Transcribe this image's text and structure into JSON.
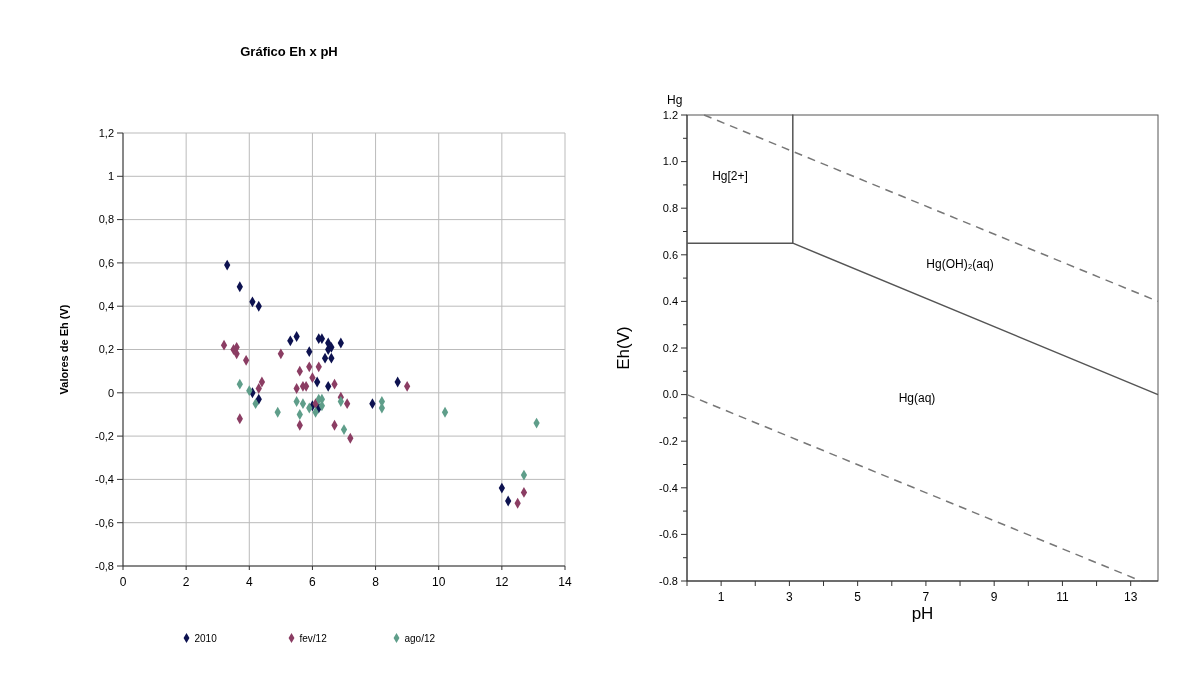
{
  "chart_data": [
    {
      "type": "scatter",
      "title": "Gráfico Eh x pH",
      "ylabel": "Valores de Eh (V)",
      "xlim": [
        0,
        14
      ],
      "xticks": [
        0,
        2,
        4,
        6,
        8,
        10,
        12,
        14
      ],
      "ylim": [
        -0.8,
        1.2
      ],
      "yticks": [
        {
          "value": -0.8,
          "label": "-0,8"
        },
        {
          "value": -0.6,
          "label": "-0,6"
        },
        {
          "value": -0.4,
          "label": "-0,4"
        },
        {
          "value": -0.2,
          "label": "-0,2"
        },
        0,
        {
          "value": 0.2,
          "label": "0,2"
        },
        {
          "value": 0.4,
          "label": "0,4"
        },
        {
          "value": 0.6,
          "label": "0,6"
        },
        {
          "value": 0.8,
          "label": "0,8"
        },
        1,
        {
          "value": 1.2,
          "label": "1,2"
        }
      ],
      "grid": true,
      "legend": "bottom",
      "marker": "diamond",
      "series": [
        {
          "name": "2010",
          "color": "#0d1250",
          "x": [
            3.3,
            3.7,
            4.1,
            4.3,
            5.3,
            5.5,
            5.9,
            6.2,
            6.3,
            6.5,
            6.5,
            6.6,
            6.4,
            6.6,
            6.9,
            6.15,
            6.5,
            4.1,
            4.3,
            6.2,
            6.0,
            7.9,
            8.7,
            12.0,
            12.2
          ],
          "values": [
            0.59,
            0.49,
            0.42,
            0.4,
            0.24,
            0.26,
            0.19,
            0.25,
            0.25,
            0.23,
            0.2,
            0.21,
            0.16,
            0.16,
            0.23,
            0.05,
            0.03,
            0.0,
            -0.03,
            -0.07,
            -0.06,
            -0.05,
            0.05,
            -0.44,
            -0.5
          ]
        },
        {
          "name": "fev/12",
          "color": "#8b3d63",
          "x": [
            3.2,
            3.5,
            3.6,
            3.6,
            3.9,
            5.0,
            3.7,
            4.4,
            4.3,
            5.6,
            5.9,
            6.2,
            5.7,
            5.5,
            5.8,
            6.0,
            6.7,
            6.1,
            5.6,
            6.7,
            6.9,
            7.1,
            7.2,
            9.0,
            12.5,
            12.7
          ],
          "values": [
            0.22,
            0.2,
            0.18,
            0.21,
            0.15,
            0.18,
            -0.12,
            0.05,
            0.02,
            0.1,
            0.12,
            0.12,
            0.03,
            0.02,
            0.03,
            0.07,
            0.04,
            -0.05,
            -0.15,
            -0.15,
            -0.02,
            -0.05,
            -0.21,
            0.03,
            -0.51,
            -0.46
          ]
        },
        {
          "name": "ago/12",
          "color": "#5f9e8a",
          "x": [
            3.7,
            4.0,
            4.2,
            4.9,
            5.5,
            5.6,
            5.7,
            5.9,
            6.2,
            6.3,
            6.3,
            6.1,
            6.9,
            7.0,
            8.2,
            8.2,
            10.2,
            13.1,
            12.7
          ],
          "values": [
            0.04,
            0.01,
            -0.05,
            -0.09,
            -0.04,
            -0.1,
            -0.05,
            -0.07,
            -0.03,
            -0.03,
            -0.06,
            -0.09,
            -0.04,
            -0.17,
            -0.04,
            -0.07,
            -0.09,
            -0.14,
            -0.38
          ]
        }
      ]
    },
    {
      "type": "line",
      "title": "Hg",
      "xlabel": "pH",
      "ylabel": "Eh(V)",
      "xlim": [
        0,
        13.8
      ],
      "xticks": [
        {
          "value": 0,
          "label": null
        },
        1,
        {
          "value": 2,
          "label": null
        },
        3,
        {
          "value": 4,
          "label": null
        },
        5,
        {
          "value": 6,
          "label": null
        },
        7,
        {
          "value": 8,
          "label": null
        },
        9,
        {
          "value": 10,
          "label": null
        },
        11,
        {
          "value": 12,
          "label": null
        },
        13
      ],
      "ylim": [
        -0.8,
        1.2
      ],
      "yticks": [
        {
          "value": -0.8,
          "label": "-0.8"
        },
        {
          "value": -0.7,
          "label": null
        },
        {
          "value": -0.6,
          "label": "-0.6"
        },
        {
          "value": -0.5,
          "label": null
        },
        {
          "value": -0.4,
          "label": "-0.4"
        },
        {
          "value": -0.3,
          "label": null
        },
        {
          "value": -0.2,
          "label": "-0.2"
        },
        {
          "value": -0.1,
          "label": null
        },
        {
          "value": 0,
          "label": "0.0"
        },
        {
          "value": 0.1,
          "label": null
        },
        {
          "value": 0.2,
          "label": "0.2"
        },
        {
          "value": 0.3,
          "label": null
        },
        {
          "value": 0.4,
          "label": "0.4"
        },
        {
          "value": 0.5,
          "label": null
        },
        {
          "value": 0.6,
          "label": "0.6"
        },
        {
          "value": 0.7,
          "label": null
        },
        {
          "value": 0.8,
          "label": "0.8"
        },
        {
          "value": 0.9,
          "label": null
        },
        {
          "value": 1.0,
          "label": "1.0"
        },
        {
          "value": 1.1,
          "label": null
        },
        {
          "value": 1.2,
          "label": "1.2"
        }
      ],
      "grid": false,
      "legend": false,
      "marker": "none",
      "series": [
        {
          "color": "#555555",
          "line_style": "solid",
          "x": [
            0,
            3.1,
            3.1,
            3.1,
            13.8
          ],
          "values": [
            0.65,
            0.65,
            1.2,
            0.65,
            0.0
          ]
        },
        {
          "color": "#777777",
          "line_style": "dashed",
          "x": [
            0.5,
            13.8
          ],
          "values": [
            1.2,
            0.4
          ]
        },
        {
          "color": "#777777",
          "line_style": "dashed",
          "x": [
            0,
            13.3
          ],
          "values": [
            0.0,
            -0.8
          ]
        }
      ],
      "annotations": [
        "Hg[2+]",
        "Hg(OH)₂(aq)",
        "Hg(aq)"
      ]
    }
  ]
}
